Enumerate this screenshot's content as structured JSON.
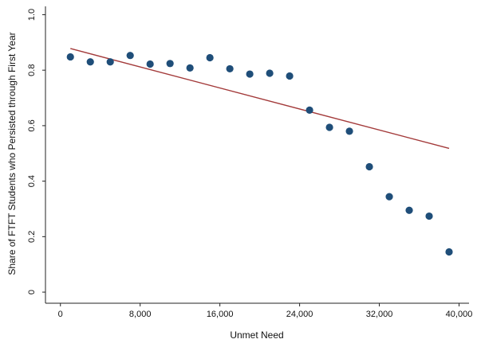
{
  "chart_data": {
    "type": "scatter",
    "title": "",
    "xlabel": "Unmet Need",
    "ylabel": "Share of FTFT Students who Persisted through First Year",
    "xlim": [
      -1500,
      41000
    ],
    "ylim": [
      -0.04,
      1.03
    ],
    "xticks": [
      0,
      8000,
      16000,
      24000,
      32000,
      40000
    ],
    "xtick_labels": [
      "0",
      "8,000",
      "16,000",
      "24,000",
      "32,000",
      "40,000"
    ],
    "yticks": [
      0,
      0.2,
      0.4,
      0.6,
      0.8,
      1.0
    ],
    "ytick_labels": [
      "0",
      "0.2",
      "0.4",
      "0.6",
      "0.8",
      "1.0"
    ],
    "grid": false,
    "legend": "none",
    "series": [
      {
        "type": "scatter",
        "color": "#1f4e79",
        "x": [
          1000,
          3000,
          5000,
          7000,
          9000,
          11000,
          13000,
          15000,
          17000,
          19000,
          21000,
          23000,
          25000,
          27000,
          29000,
          31000,
          33000,
          35000,
          37000,
          39000
        ],
        "y": [
          0.848,
          0.83,
          0.83,
          0.853,
          0.822,
          0.824,
          0.808,
          0.845,
          0.805,
          0.786,
          0.789,
          0.779,
          0.656,
          0.594,
          0.58,
          0.452,
          0.344,
          0.295,
          0.274,
          0.145
        ]
      },
      {
        "type": "line",
        "color": "#a33a3a",
        "x": [
          1000,
          39000
        ],
        "y": [
          0.878,
          0.518
        ]
      }
    ]
  }
}
